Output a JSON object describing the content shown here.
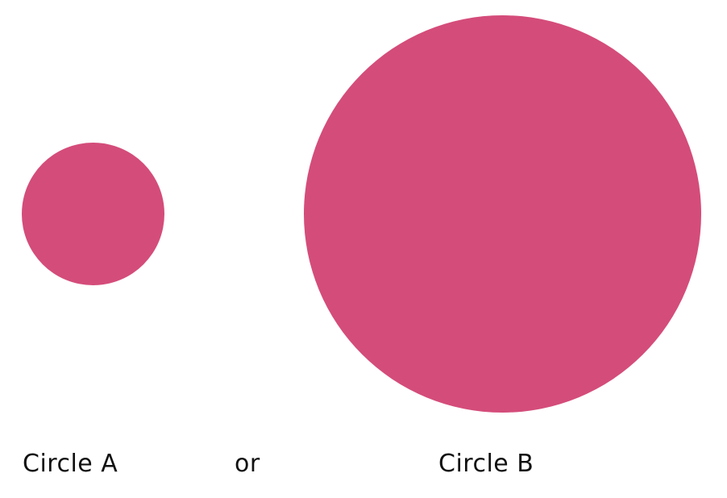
{
  "colors": {
    "circle_fill": "#d44c7a",
    "text": "#111111",
    "background": "#ffffff"
  },
  "labels": {
    "circle_a": "Circle A",
    "separator": "or",
    "circle_b": "Circle B"
  }
}
